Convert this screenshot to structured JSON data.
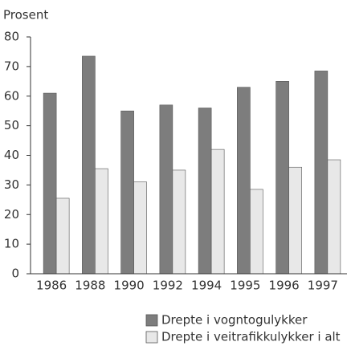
{
  "chart_data": {
    "type": "bar",
    "ylabel": "Prosent",
    "categories": [
      "1986",
      "1988",
      "1990",
      "1992",
      "1994",
      "1995",
      "1996",
      "1997"
    ],
    "series": [
      {
        "name": "Drepte i vogntogulykker",
        "color": "#7d7d7d",
        "values": [
          61,
          73.5,
          55,
          57,
          56,
          63,
          65,
          68.5
        ]
      },
      {
        "name": "Drepte i veitrafikkulykker i alt",
        "color": "#e8e8e8",
        "values": [
          25.5,
          35.5,
          31,
          35,
          42,
          28.5,
          36,
          38.5
        ]
      }
    ],
    "ylim": [
      0,
      80
    ],
    "yticks": [
      0,
      10,
      20,
      30,
      40,
      50,
      60,
      70,
      80
    ],
    "grid": false
  }
}
